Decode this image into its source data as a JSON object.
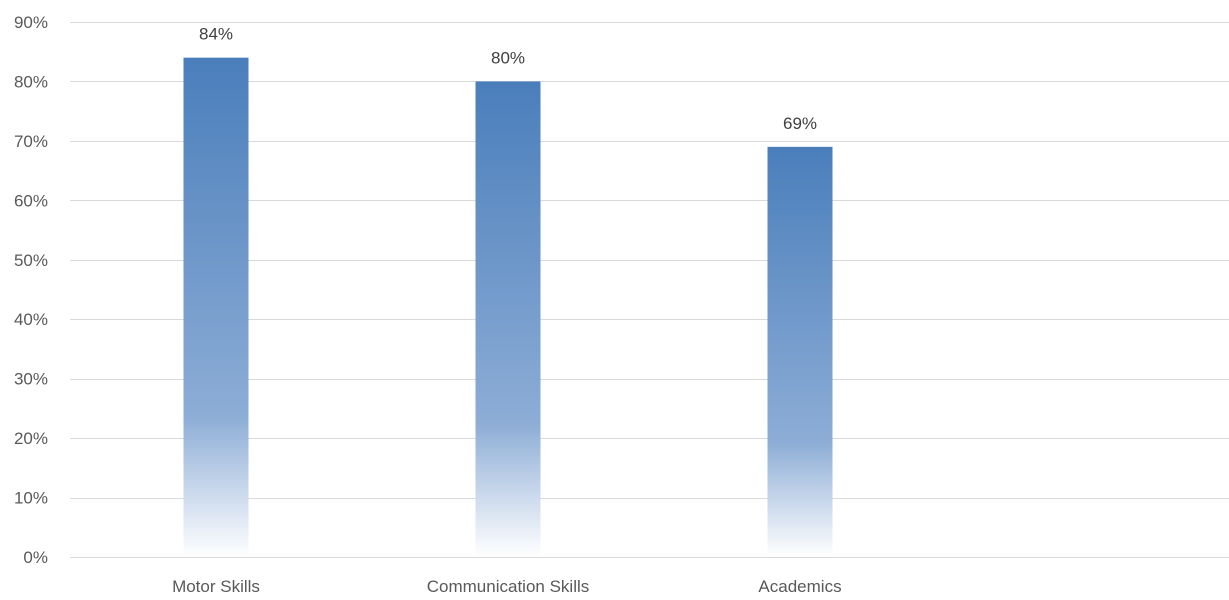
{
  "chart_data": {
    "type": "bar",
    "title": "",
    "xlabel": "",
    "ylabel": "",
    "categories": [
      "Motor Skills",
      "Communication Skills",
      "Academics"
    ],
    "values": [
      84,
      80,
      69
    ],
    "data_labels": [
      "84%",
      "80%",
      "69%"
    ],
    "yticks": [
      0,
      10,
      20,
      30,
      40,
      50,
      60,
      70,
      80,
      90
    ],
    "ytick_labels": [
      "0%",
      "10%",
      "20%",
      "30%",
      "40%",
      "50%",
      "60%",
      "70%",
      "80%",
      "90%"
    ],
    "ylim": [
      0,
      90
    ],
    "grid": true,
    "legend": "none",
    "colors": {
      "bar_top": "#4a7ebb",
      "bar_bottom": "#ffffff",
      "gridline": "#d9d9d9",
      "text": "#595959"
    }
  }
}
